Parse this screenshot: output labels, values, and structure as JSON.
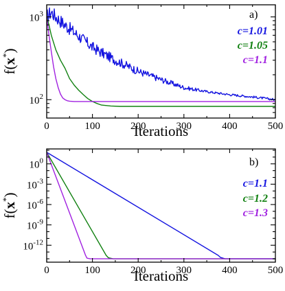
{
  "chart_data": [
    {
      "type": "line",
      "panel_label": "a)",
      "xlabel": "Iterations",
      "ylabel": "f(x*)",
      "xlim": [
        0,
        500
      ],
      "ylim": [
        60,
        1400
      ],
      "y_scale": "log",
      "x_ticks": [
        0,
        100,
        200,
        300,
        400,
        500
      ],
      "y_ticks": [
        {
          "value": 1000,
          "label_base": "10",
          "label_exp": "3"
        },
        {
          "value": 100,
          "label_base": "10",
          "label_exp": "2"
        }
      ],
      "legend_position": "top-right",
      "series": [
        {
          "name": "c=1.01",
          "color": "#1515e0",
          "noisy": true,
          "x": [
            0,
            10,
            20,
            40,
            60,
            80,
            100,
            120,
            150,
            180,
            200,
            250,
            300,
            350,
            400,
            450,
            500
          ],
          "y": [
            1000,
            1150,
            1000,
            800,
            650,
            530,
            430,
            370,
            300,
            250,
            220,
            175,
            140,
            125,
            115,
            108,
            100
          ]
        },
        {
          "name": "c=1.05",
          "color": "#108010",
          "noisy": false,
          "x": [
            0,
            5,
            10,
            20,
            30,
            40,
            50,
            60,
            70,
            80,
            90,
            100,
            110,
            120,
            140,
            160,
            200,
            300,
            400,
            500
          ],
          "y": [
            1000,
            800,
            600,
            400,
            300,
            240,
            180,
            150,
            130,
            115,
            103,
            95,
            90,
            86,
            84,
            83,
            83,
            83,
            83,
            83
          ]
        },
        {
          "name": "c=1.1",
          "color": "#a020e0",
          "noisy": false,
          "x": [
            0,
            5,
            10,
            15,
            20,
            25,
            30,
            35,
            40,
            45,
            50,
            60,
            80,
            100,
            200,
            300,
            400,
            500
          ],
          "y": [
            1000,
            600,
            380,
            250,
            180,
            140,
            117,
            105,
            100,
            97,
            96,
            95,
            95,
            95,
            95,
            95,
            95,
            95
          ]
        }
      ]
    },
    {
      "type": "line",
      "panel_label": "b)",
      "xlabel": "Iterations",
      "ylabel": "f(x*)",
      "xlim": [
        0,
        500
      ],
      "ylim": [
        -14.5,
        2.2
      ],
      "y_scale": "log",
      "x_ticks": [
        0,
        100,
        200,
        300,
        400,
        500
      ],
      "y_ticks": [
        {
          "value": 0,
          "label_base": "10",
          "label_exp": "0"
        },
        {
          "value": -3,
          "label_base": "10",
          "label_exp": "-3"
        },
        {
          "value": -6,
          "label_base": "10",
          "label_exp": "-6"
        },
        {
          "value": -9,
          "label_base": "10",
          "label_exp": "-9"
        },
        {
          "value": -12,
          "label_base": "10",
          "label_exp": "-12"
        }
      ],
      "legend_position": "top-right",
      "series": [
        {
          "name": "c=1.1",
          "color": "#1515e0",
          "x": [
            0,
            375,
            380,
            390,
            400,
            420,
            500
          ],
          "y": [
            1.7,
            -13.5,
            -13.8,
            -14.0,
            -14.0,
            -14.0,
            -14.0
          ]
        },
        {
          "name": "c=1.2",
          "color": "#108010",
          "x": [
            0,
            130,
            135,
            145,
            500
          ],
          "y": [
            1.7,
            -13.5,
            -13.85,
            -14.0,
            -14.0
          ]
        },
        {
          "name": "c=1.3",
          "color": "#a020e0",
          "x": [
            0,
            85,
            88,
            95,
            500
          ],
          "y": [
            1.7,
            -13.5,
            -13.9,
            -14.0,
            -14.0
          ]
        }
      ]
    }
  ]
}
